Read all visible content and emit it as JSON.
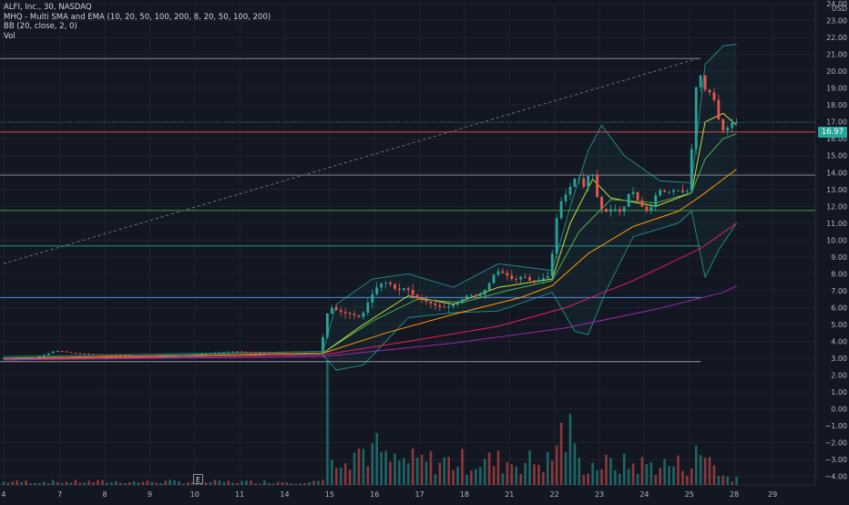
{
  "legend": {
    "symbol_line": "ALFI, Inc., 30, NASDAQ",
    "ma_line": "MHQ - Multi SMA and EMA (10, 20, 50, 100, 200, 8, 20, 50, 100, 200)",
    "bb_line": "BB (20, close, 2, 0)",
    "vol_line": "Vol"
  },
  "currency": "USD",
  "last_price": "16.97",
  "event_marker": "E",
  "colors": {
    "background": "#131722",
    "grid": "#1e222d",
    "up": "#26a69a",
    "down": "#ef5350",
    "axis_text": "#b2b5be"
  },
  "chart_data": {
    "type": "candlestick",
    "ylim": [
      -4.5,
      24.0
    ],
    "yticks": [
      "24.00",
      "23.00",
      "22.00",
      "21.00",
      "20.00",
      "19.00",
      "18.00",
      "17.00",
      "16.00",
      "15.00",
      "14.00",
      "13.00",
      "12.00",
      "11.00",
      "10.00",
      "9.00",
      "8.00",
      "7.00",
      "6.00",
      "5.00",
      "4.00",
      "3.00",
      "2.00",
      "1.00",
      "0.00",
      "−1.00",
      "−2.00",
      "−3.00",
      "−4.00"
    ],
    "xticks": [
      "4",
      "7",
      "8",
      "9",
      "10",
      "11",
      "14",
      "15",
      "16",
      "17",
      "18",
      "21",
      "22",
      "23",
      "24",
      "25",
      "28",
      "29"
    ],
    "xticks_t": [
      0,
      12.5,
      22.5,
      32.5,
      42.5,
      52.5,
      62.5,
      72.5,
      82.5,
      92.5,
      102.5,
      112.5,
      122.5,
      132.5,
      142.5,
      152.5,
      162.5,
      171
    ],
    "x_range": [
      -0.8,
      180.5
    ],
    "price_path": [
      [
        0,
        3.0
      ],
      [
        5,
        3.0
      ],
      [
        8,
        3.05
      ],
      [
        12,
        3.45
      ],
      [
        18,
        3.25
      ],
      [
        25,
        3.2
      ],
      [
        30,
        3.15
      ],
      [
        36,
        3.1
      ],
      [
        42,
        3.2
      ],
      [
        48,
        3.35
      ],
      [
        52,
        3.4
      ],
      [
        58,
        3.3
      ],
      [
        64,
        3.25
      ],
      [
        71,
        3.3
      ],
      [
        72,
        5.2
      ],
      [
        73,
        6.1
      ],
      [
        74,
        5.9
      ],
      [
        76,
        5.7
      ],
      [
        78,
        5.6
      ],
      [
        80,
        5.4
      ],
      [
        82,
        6.6
      ],
      [
        84,
        7.4
      ],
      [
        86,
        7.5
      ],
      [
        88,
        7.0
      ],
      [
        90,
        7.2
      ],
      [
        92,
        6.6
      ],
      [
        94,
        6.4
      ],
      [
        96,
        6.2
      ],
      [
        98,
        6.0
      ],
      [
        100,
        6.1
      ],
      [
        102,
        6.4
      ],
      [
        104,
        6.8
      ],
      [
        106,
        6.6
      ],
      [
        108,
        7.2
      ],
      [
        110,
        8.2
      ],
      [
        112,
        8.0
      ],
      [
        114,
        7.6
      ],
      [
        116,
        7.9
      ],
      [
        118,
        7.5
      ],
      [
        120,
        7.7
      ],
      [
        122,
        7.9
      ],
      [
        123,
        10.5
      ],
      [
        124,
        12.1
      ],
      [
        126,
        12.9
      ],
      [
        128,
        13.9
      ],
      [
        130,
        12.9
      ],
      [
        131,
        14.7
      ],
      [
        132,
        13.0
      ],
      [
        133,
        12.1
      ],
      [
        134,
        11.6
      ],
      [
        136,
        11.9
      ],
      [
        138,
        11.6
      ],
      [
        140,
        13.1
      ],
      [
        142,
        12.1
      ],
      [
        144,
        11.6
      ],
      [
        146,
        13.0
      ],
      [
        148,
        12.8
      ],
      [
        150,
        13.0
      ],
      [
        152,
        12.8
      ],
      [
        153,
        13.0
      ],
      [
        154,
        17.8
      ],
      [
        155,
        20.3
      ],
      [
        156,
        19.2
      ],
      [
        157,
        18.6
      ],
      [
        158,
        18.9
      ],
      [
        159,
        17.7
      ],
      [
        160,
        16.6
      ],
      [
        161,
        16.4
      ],
      [
        162,
        16.9
      ],
      [
        163,
        16.97
      ]
    ],
    "volume_clusters": [
      {
        "from": 0,
        "to": 71,
        "max": -4.2
      },
      {
        "from": 72,
        "to": 72,
        "max": 2.9
      },
      {
        "from": 73,
        "to": 84,
        "max": -1.2
      },
      {
        "from": 85,
        "to": 122,
        "max": -2.3
      },
      {
        "from": 123,
        "to": 127,
        "max": 0.1
      },
      {
        "from": 128,
        "to": 153,
        "max": -2.6
      },
      {
        "from": 154,
        "to": 158,
        "max": -1.8
      },
      {
        "from": 159,
        "to": 163,
        "max": -3.7
      }
    ],
    "horizontal_levels": [
      {
        "y": 20.75,
        "x_end": 155,
        "color": "#9598a1"
      },
      {
        "y": 16.4,
        "x_end": 180.5,
        "color": "#ef5350"
      },
      {
        "y": 13.85,
        "x_end": 180.5,
        "color": "#9598a1"
      },
      {
        "y": 11.75,
        "x_end": 180.5,
        "color": "#4caf50"
      },
      {
        "y": 9.65,
        "x_end": 155,
        "color": "#26a69a"
      },
      {
        "y": 6.6,
        "x_end": 155,
        "color": "#5b9cf6"
      },
      {
        "y": 2.8,
        "x_end": 155,
        "color": "#9598a1"
      }
    ],
    "trendline": {
      "from": [
        0,
        8.6
      ],
      "to": [
        155,
        20.8
      ],
      "color": "#787b86"
    },
    "ma_lines": [
      {
        "color": "#cddc39",
        "points": [
          [
            0,
            3.0
          ],
          [
            71,
            3.3
          ],
          [
            80,
            5.0
          ],
          [
            90,
            6.7
          ],
          [
            100,
            6.2
          ],
          [
            110,
            7.2
          ],
          [
            122,
            7.7
          ],
          [
            126,
            11.0
          ],
          [
            131,
            13.6
          ],
          [
            135,
            12.5
          ],
          [
            145,
            12.0
          ],
          [
            153,
            12.8
          ],
          [
            156,
            17.0
          ],
          [
            160,
            17.5
          ],
          [
            163,
            16.8
          ]
        ]
      },
      {
        "color": "#4caf50",
        "points": [
          [
            0,
            3.0
          ],
          [
            71,
            3.3
          ],
          [
            82,
            5.2
          ],
          [
            92,
            6.5
          ],
          [
            102,
            6.3
          ],
          [
            112,
            7.0
          ],
          [
            122,
            7.6
          ],
          [
            128,
            10.5
          ],
          [
            135,
            12.4
          ],
          [
            145,
            12.2
          ],
          [
            153,
            12.8
          ],
          [
            156,
            14.8
          ],
          [
            160,
            16.0
          ],
          [
            163,
            16.3
          ]
        ]
      },
      {
        "color": "#ff9800",
        "points": [
          [
            0,
            3.0
          ],
          [
            71,
            3.3
          ],
          [
            85,
            4.5
          ],
          [
            100,
            5.6
          ],
          [
            115,
            6.6
          ],
          [
            122,
            7.3
          ],
          [
            130,
            9.2
          ],
          [
            140,
            10.8
          ],
          [
            150,
            11.7
          ],
          [
            155,
            12.6
          ],
          [
            163,
            14.2
          ]
        ]
      },
      {
        "color": "#e91e63",
        "points": [
          [
            0,
            2.95
          ],
          [
            71,
            3.2
          ],
          [
            90,
            4.0
          ],
          [
            110,
            4.9
          ],
          [
            125,
            6.0
          ],
          [
            140,
            7.6
          ],
          [
            155,
            9.5
          ],
          [
            163,
            11.0
          ]
        ]
      },
      {
        "color": "#9c27b0",
        "points": [
          [
            0,
            2.9
          ],
          [
            71,
            3.1
          ],
          [
            100,
            3.9
          ],
          [
            125,
            4.8
          ],
          [
            145,
            5.9
          ],
          [
            160,
            6.9
          ],
          [
            163,
            7.3
          ]
        ]
      }
    ],
    "bollinger": {
      "color": "#26a69a",
      "upper": [
        [
          0,
          3.1
        ],
        [
          71,
          3.4
        ],
        [
          74,
          6.2
        ],
        [
          82,
          7.7
        ],
        [
          90,
          8.0
        ],
        [
          100,
          7.2
        ],
        [
          110,
          8.6
        ],
        [
          122,
          8.2
        ],
        [
          126,
          12.0
        ],
        [
          130,
          15.3
        ],
        [
          133,
          16.8
        ],
        [
          138,
          15.0
        ],
        [
          146,
          13.5
        ],
        [
          153,
          13.4
        ],
        [
          156,
          20.4
        ],
        [
          160,
          21.5
        ],
        [
          163,
          21.6
        ]
      ],
      "lower": [
        [
          0,
          2.9
        ],
        [
          71,
          3.2
        ],
        [
          74,
          2.3
        ],
        [
          80,
          2.6
        ],
        [
          90,
          5.4
        ],
        [
          100,
          5.7
        ],
        [
          110,
          5.8
        ],
        [
          122,
          6.9
        ],
        [
          127,
          4.6
        ],
        [
          130,
          4.4
        ],
        [
          134,
          7.0
        ],
        [
          140,
          10.2
        ],
        [
          150,
          11.0
        ],
        [
          153,
          11.7
        ],
        [
          156,
          7.8
        ],
        [
          159,
          9.4
        ],
        [
          163,
          11.0
        ]
      ]
    }
  }
}
